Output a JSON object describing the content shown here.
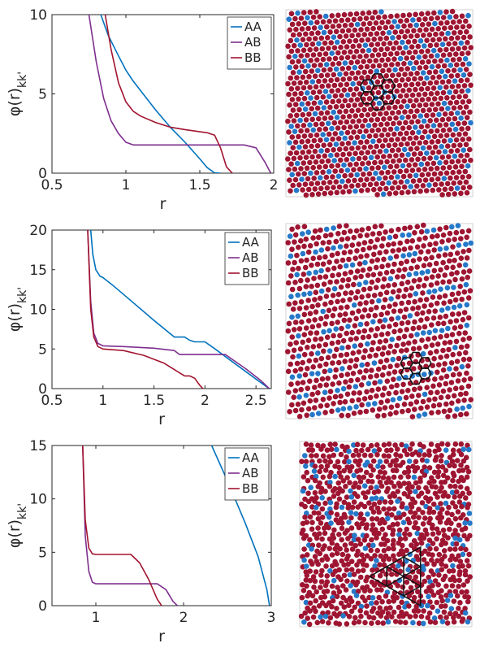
{
  "chart_data": [
    {
      "type": "line",
      "xlabel": "r",
      "ylabel_main": "φ(r)",
      "ylabel_sub": "kk'",
      "xlim": [
        0.5,
        2
      ],
      "ylim": [
        0,
        10
      ],
      "xticks": [
        "0.5",
        "1",
        "1.5",
        "2"
      ],
      "yticks": [
        "0",
        "5",
        "10"
      ],
      "legend": "top-right",
      "series": [
        {
          "name": "AA",
          "color": "#0072BD",
          "x": [
            0.83,
            0.88,
            0.95,
            1.0,
            1.05,
            1.1,
            1.2,
            1.3,
            1.4,
            1.5,
            1.55,
            1.6,
            1.64
          ],
          "y": [
            10,
            8.7,
            7.4,
            6.5,
            5.8,
            5.2,
            4.0,
            2.9,
            1.95,
            0.9,
            0.35,
            0.02,
            0
          ]
        },
        {
          "name": "AB",
          "color": "#7E2F8E",
          "x": [
            0.75,
            0.8,
            0.85,
            0.9,
            0.95,
            1.0,
            1.05,
            1.2,
            1.5,
            1.8,
            1.88,
            1.94,
            1.98
          ],
          "y": [
            10,
            7.0,
            4.7,
            3.3,
            2.5,
            1.95,
            1.78,
            1.78,
            1.78,
            1.78,
            1.6,
            0.7,
            0
          ]
        },
        {
          "name": "BB",
          "color": "#A2142F",
          "x": [
            0.86,
            0.9,
            0.95,
            1.0,
            1.05,
            1.1,
            1.2,
            1.3,
            1.4,
            1.55,
            1.6,
            1.64,
            1.68,
            1.72
          ],
          "y": [
            10,
            7.8,
            5.7,
            4.5,
            3.9,
            3.6,
            3.2,
            2.9,
            2.75,
            2.55,
            2.4,
            1.6,
            0.4,
            0
          ]
        }
      ]
    },
    {
      "type": "line",
      "xlabel": "r",
      "ylabel_main": "φ(r)",
      "ylabel_sub": "kk'",
      "xlim": [
        0.5,
        2.65
      ],
      "ylim": [
        0,
        20
      ],
      "xticks": [
        "0.5",
        "1",
        "1.5",
        "2",
        "2.5"
      ],
      "yticks": [
        "0",
        "5",
        "10",
        "15",
        "20"
      ],
      "legend": "top-right",
      "series": [
        {
          "name": "AA",
          "color": "#0072BD",
          "x": [
            0.88,
            0.9,
            0.93,
            0.97,
            1.0,
            1.1,
            1.3,
            1.5,
            1.7,
            1.8,
            1.85,
            1.9,
            2.0,
            2.1,
            2.3,
            2.5,
            2.63
          ],
          "y": [
            20,
            17.0,
            15.0,
            14.2,
            14.0,
            13.0,
            10.8,
            8.6,
            6.5,
            6.5,
            6.1,
            5.9,
            5.9,
            5.0,
            3.1,
            1.2,
            0
          ]
        },
        {
          "name": "AB",
          "color": "#7E2F8E",
          "x": [
            0.85,
            0.88,
            0.91,
            0.95,
            1.0,
            1.2,
            1.5,
            1.7,
            1.75,
            2.0,
            2.2,
            2.4,
            2.55,
            2.63
          ],
          "y": [
            20,
            11.0,
            7.0,
            5.7,
            5.4,
            5.3,
            5.1,
            4.8,
            4.3,
            4.3,
            4.3,
            2.5,
            1.0,
            0
          ]
        },
        {
          "name": "BB",
          "color": "#A2142F",
          "x": [
            0.85,
            0.88,
            0.91,
            0.95,
            1.0,
            1.2,
            1.4,
            1.6,
            1.8,
            1.85,
            1.9,
            1.95,
            1.98
          ],
          "y": [
            20,
            10.0,
            6.5,
            5.3,
            5.0,
            4.8,
            4.2,
            3.2,
            1.6,
            1.6,
            1.3,
            0.4,
            0
          ]
        }
      ]
    },
    {
      "type": "line",
      "xlabel": "r",
      "ylabel_main": "φ(r)",
      "ylabel_sub": "kk'",
      "xlim": [
        0.5,
        3
      ],
      "ylim": [
        0,
        15
      ],
      "xticks": [
        "1",
        "2",
        "3"
      ],
      "yticks": [
        "0",
        "5",
        "10",
        "15"
      ],
      "legend": "top-right",
      "series": [
        {
          "name": "AA",
          "color": "#0072BD",
          "x": [
            2.32,
            2.5,
            2.7,
            2.85,
            2.95,
            2.98
          ],
          "y": [
            15,
            11.7,
            7.8,
            4.6,
            1.5,
            0
          ]
        },
        {
          "name": "AB",
          "color": "#7E2F8E",
          "x": [
            0.85,
            0.88,
            0.92,
            0.96,
            1.0,
            1.2,
            1.5,
            1.7,
            1.8,
            1.88,
            1.93
          ],
          "y": [
            15,
            6.5,
            3.2,
            2.2,
            2.05,
            2.05,
            2.05,
            2.05,
            1.5,
            0.4,
            0
          ]
        },
        {
          "name": "BB",
          "color": "#A2142F",
          "x": [
            0.85,
            0.88,
            0.92,
            0.96,
            1.0,
            1.2,
            1.4,
            1.5,
            1.6,
            1.7,
            1.75
          ],
          "y": [
            15,
            8.0,
            5.4,
            4.85,
            4.8,
            4.8,
            4.8,
            4.0,
            2.5,
            0.6,
            0
          ]
        }
      ]
    }
  ],
  "snapshots": [
    {
      "lattice": "hexagonal",
      "colors": {
        "A": "#2678c9",
        "B": "#9e1532"
      }
    },
    {
      "lattice": "striped-hexagonal",
      "colors": {
        "A": "#2678c9",
        "B": "#9e1532"
      }
    },
    {
      "lattice": "quasicrystal",
      "colors": {
        "A": "#2678c9",
        "B": "#9e1532"
      }
    }
  ]
}
